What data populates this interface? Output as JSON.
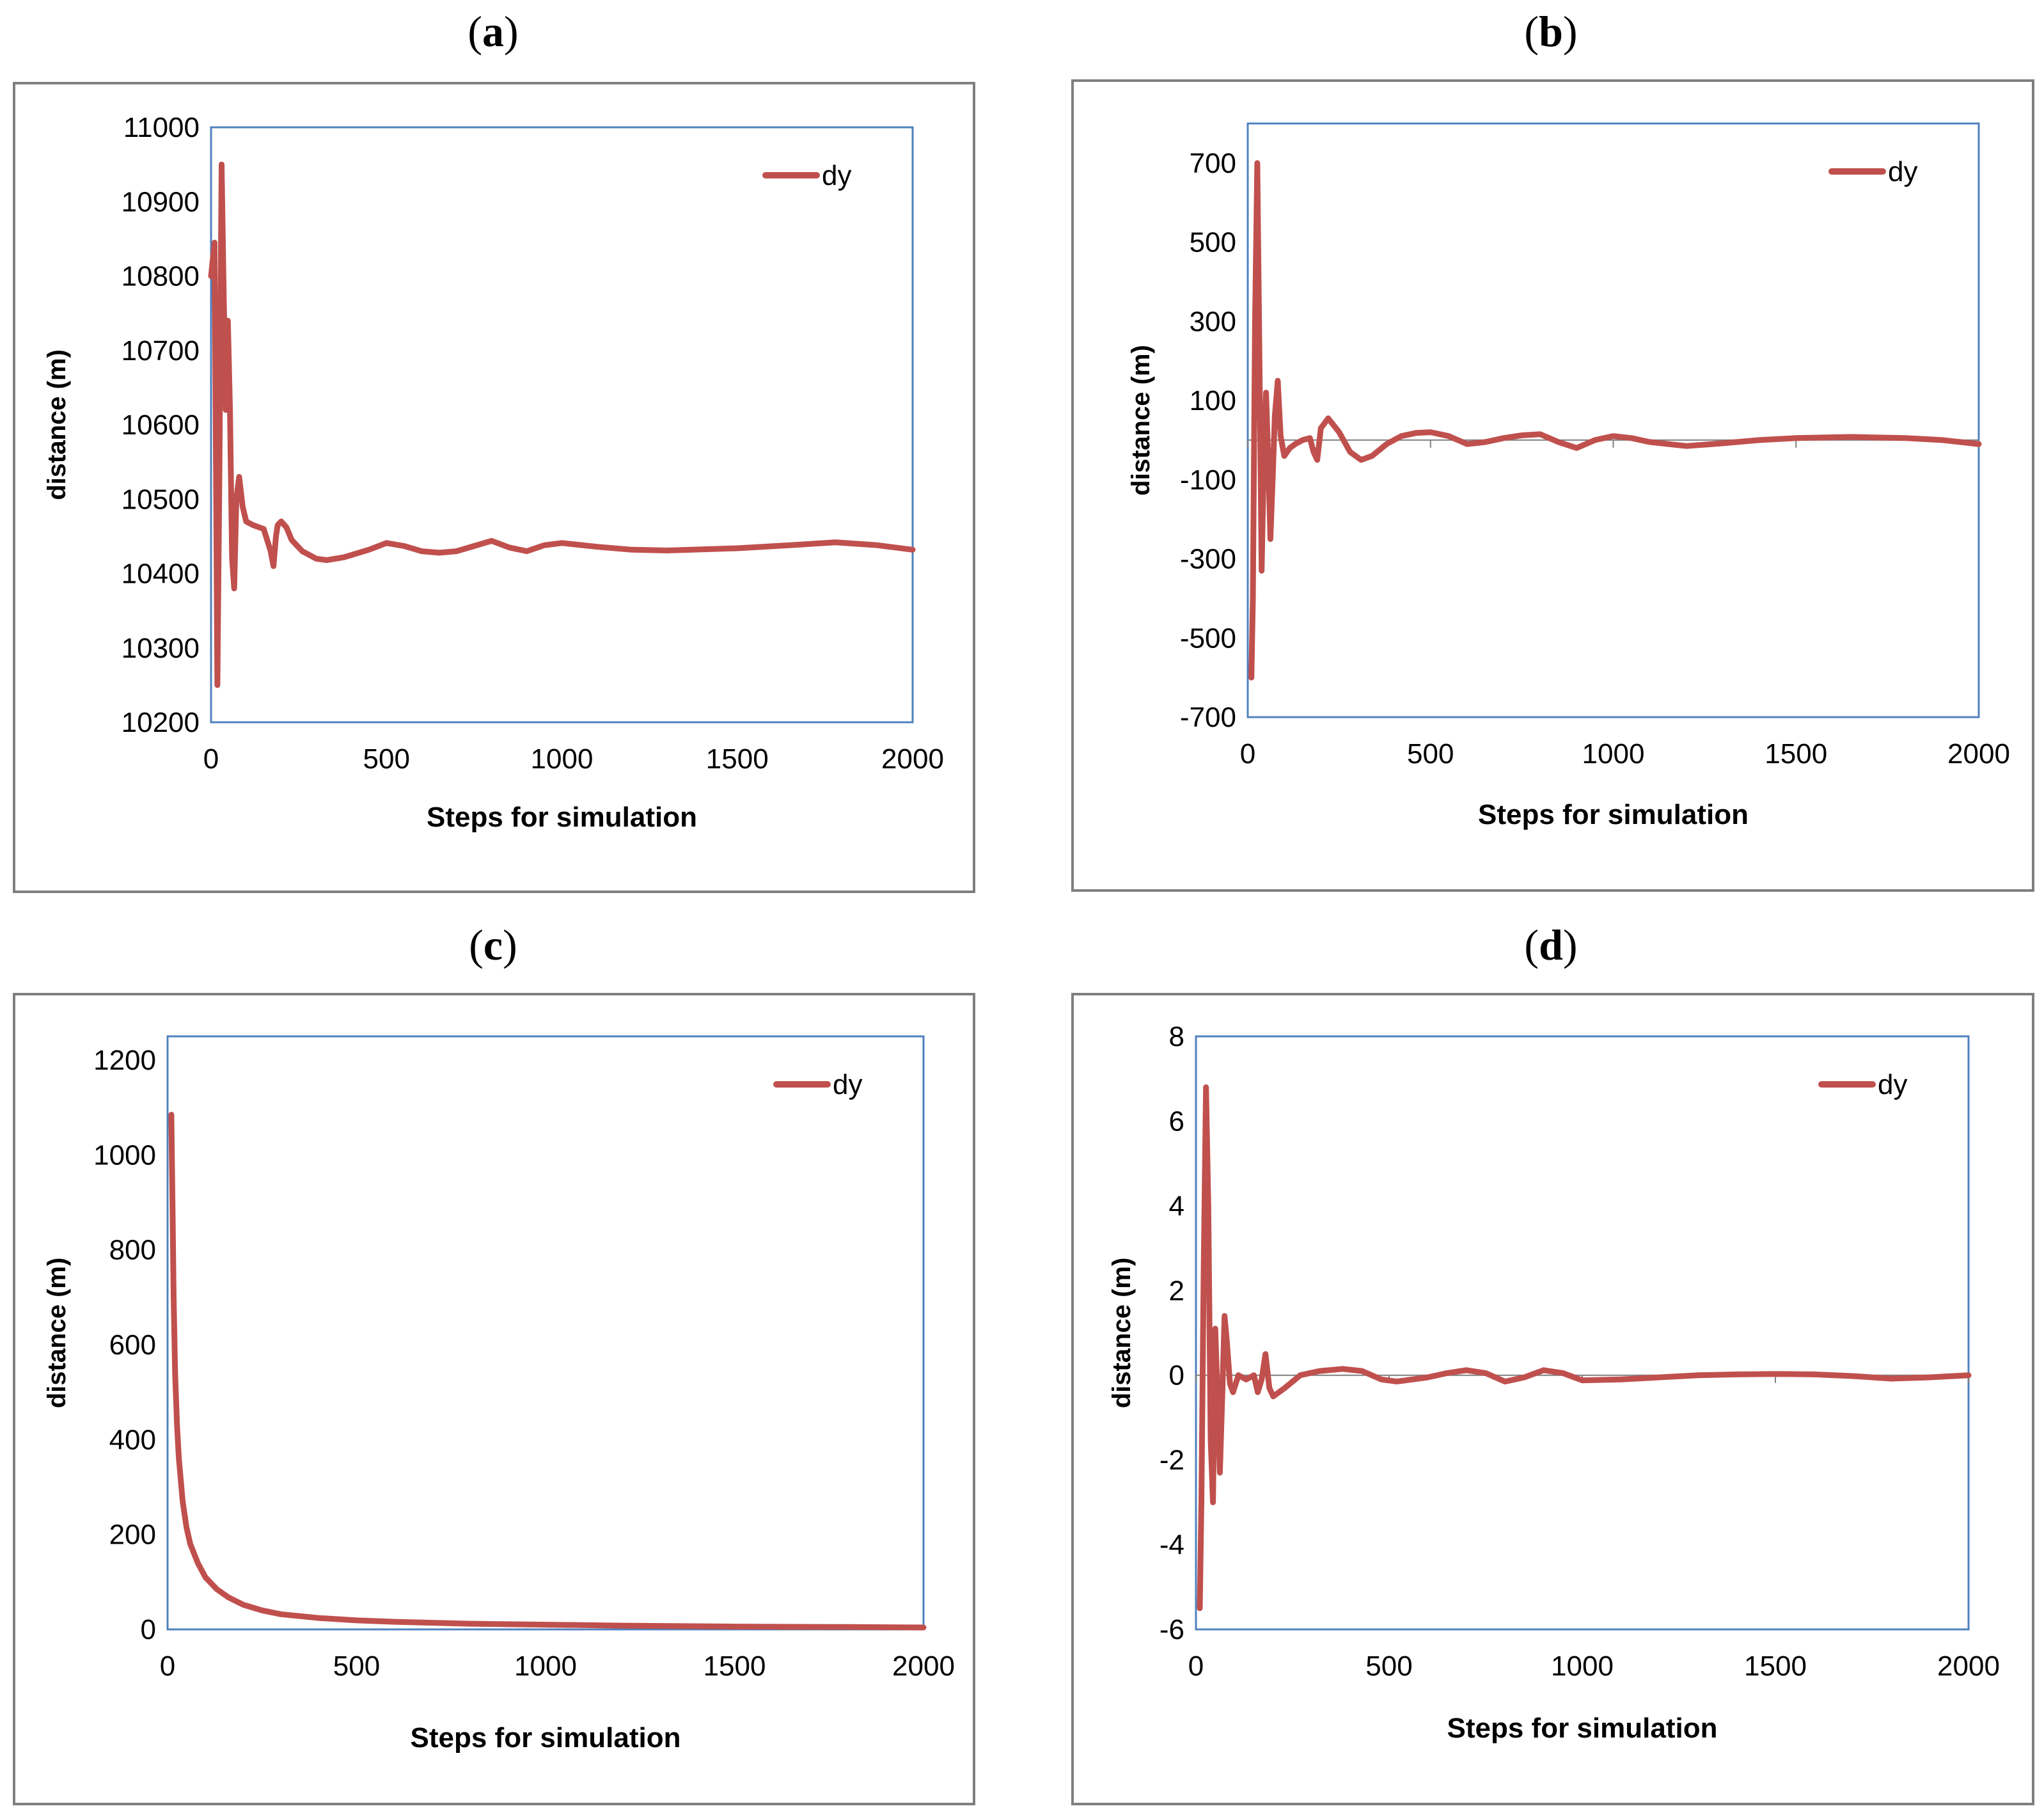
{
  "colors": {
    "series": "#c0504d",
    "plot_border": "#4f81bd",
    "frame": "#7f7f7f",
    "zero_line": "#808080"
  },
  "chart_data": [
    {
      "panel": "a",
      "label": "(a)",
      "type": "line",
      "xlabel": "Steps for simulation",
      "ylabel": "distance  (m)",
      "legend": "dy",
      "legend_position": "top-right",
      "xlim": [
        0,
        2000
      ],
      "ylim": [
        10200,
        11000
      ],
      "xticks": [
        0,
        500,
        1000,
        1500,
        2000
      ],
      "yticks": [
        10200,
        10300,
        10400,
        10500,
        10600,
        10700,
        10800,
        10900,
        11000
      ],
      "zero_line": false,
      "series": [
        {
          "name": "dy",
          "x": [
            0,
            10,
            18,
            24,
            30,
            36,
            42,
            48,
            54,
            60,
            66,
            72,
            80,
            90,
            100,
            120,
            150,
            170,
            178,
            185,
            190,
            200,
            215,
            230,
            260,
            300,
            330,
            380,
            450,
            500,
            550,
            600,
            650,
            700,
            750,
            800,
            850,
            900,
            950,
            1000,
            1100,
            1200,
            1300,
            1500,
            1650,
            1780,
            1900,
            2000
          ],
          "y": [
            10800,
            10845,
            10250,
            10550,
            10950,
            10780,
            10620,
            10740,
            10620,
            10420,
            10380,
            10500,
            10530,
            10490,
            10470,
            10465,
            10460,
            10430,
            10410,
            10450,
            10465,
            10470,
            10462,
            10445,
            10430,
            10420,
            10418,
            10422,
            10432,
            10441,
            10437,
            10430,
            10428,
            10430,
            10437,
            10444,
            10435,
            10430,
            10438,
            10441,
            10436,
            10432,
            10431,
            10434,
            10438,
            10442,
            10438,
            10432
          ]
        }
      ]
    },
    {
      "panel": "b",
      "label": "(b)",
      "type": "line",
      "xlabel": "Steps for simulation",
      "ylabel": "distance  (m)",
      "legend": "dy",
      "legend_position": "top-right",
      "xlim": [
        0,
        2000
      ],
      "ylim": [
        -700,
        800
      ],
      "xticks": [
        0,
        500,
        1000,
        1500,
        2000
      ],
      "yticks": [
        -700,
        -500,
        -300,
        -100,
        100,
        300,
        500,
        700
      ],
      "zero_line": true,
      "series": [
        {
          "name": "dy",
          "x": [
            10,
            14,
            20,
            26,
            32,
            38,
            44,
            50,
            56,
            62,
            68,
            74,
            82,
            90,
            100,
            115,
            130,
            150,
            170,
            180,
            190,
            200,
            220,
            250,
            280,
            310,
            340,
            380,
            420,
            460,
            500,
            550,
            600,
            650,
            700,
            750,
            800,
            850,
            900,
            950,
            1000,
            1050,
            1100,
            1200,
            1300,
            1400,
            1500,
            1650,
            1800,
            1900,
            2000
          ],
          "y": [
            -600,
            -400,
            300,
            700,
            200,
            -330,
            -50,
            120,
            -50,
            -250,
            -100,
            60,
            150,
            10,
            -40,
            -20,
            -10,
            0,
            5,
            -30,
            -50,
            30,
            55,
            20,
            -30,
            -50,
            -40,
            -10,
            10,
            18,
            20,
            10,
            -10,
            -5,
            5,
            12,
            15,
            -5,
            -20,
            0,
            10,
            5,
            -5,
            -15,
            -8,
            0,
            5,
            8,
            5,
            0,
            -10
          ]
        }
      ]
    },
    {
      "panel": "c",
      "label": "(c)",
      "type": "line",
      "xlabel": "Steps for simulation",
      "ylabel": "distance  (m)",
      "legend": "dy",
      "legend_position": "top-right",
      "xlim": [
        0,
        2000
      ],
      "ylim": [
        0,
        1250
      ],
      "xticks": [
        0,
        500,
        1000,
        1500,
        2000
      ],
      "yticks": [
        0,
        200,
        400,
        600,
        800,
        1000,
        1200
      ],
      "zero_line": false,
      "series": [
        {
          "name": "dy",
          "x": [
            10,
            13,
            16,
            20,
            25,
            30,
            40,
            50,
            60,
            80,
            100,
            130,
            160,
            200,
            250,
            300,
            400,
            500,
            600,
            800,
            1000,
            1200,
            1500,
            1800,
            2000
          ],
          "y": [
            1085,
            900,
            700,
            540,
            430,
            360,
            270,
            215,
            180,
            140,
            110,
            85,
            68,
            52,
            40,
            32,
            24,
            19,
            16,
            12,
            10,
            8,
            6,
            5,
            4
          ]
        }
      ]
    },
    {
      "panel": "d",
      "label": "(d)",
      "type": "line",
      "xlabel": "Steps for simulation",
      "ylabel": "distance  (m)",
      "legend": "dy",
      "legend_position": "top-right",
      "xlim": [
        0,
        2000
      ],
      "ylim": [
        -6,
        8
      ],
      "xticks": [
        0,
        500,
        1000,
        1500,
        2000
      ],
      "yticks": [
        -6,
        -4,
        -2,
        0,
        2,
        4,
        6,
        8
      ],
      "zero_line": true,
      "series": [
        {
          "name": "dy",
          "x": [
            10,
            14,
            20,
            26,
            32,
            38,
            44,
            50,
            56,
            62,
            68,
            74,
            80,
            88,
            96,
            110,
            130,
            150,
            160,
            170,
            180,
            190,
            200,
            230,
            270,
            320,
            380,
            430,
            480,
            520,
            600,
            650,
            700,
            750,
            800,
            850,
            900,
            950,
            1000,
            1100,
            1200,
            1300,
            1400,
            1500,
            1600,
            1700,
            1800,
            1900,
            2000
          ],
          "y": [
            -5.5,
            -3,
            2.5,
            6.8,
            4,
            -1.5,
            -3,
            1.1,
            -0.5,
            -2.3,
            -0.5,
            1.4,
            0.8,
            -0.2,
            -0.4,
            0,
            -0.1,
            0,
            -0.4,
            -0.1,
            0.5,
            -0.3,
            -0.5,
            -0.3,
            0,
            0.1,
            0.15,
            0.1,
            -0.1,
            -0.15,
            -0.05,
            0.05,
            0.12,
            0.05,
            -0.15,
            -0.05,
            0.12,
            0.05,
            -0.12,
            -0.1,
            -0.05,
            0,
            0.02,
            0.03,
            0.02,
            -0.02,
            -0.08,
            -0.05,
            0
          ]
        }
      ]
    }
  ]
}
